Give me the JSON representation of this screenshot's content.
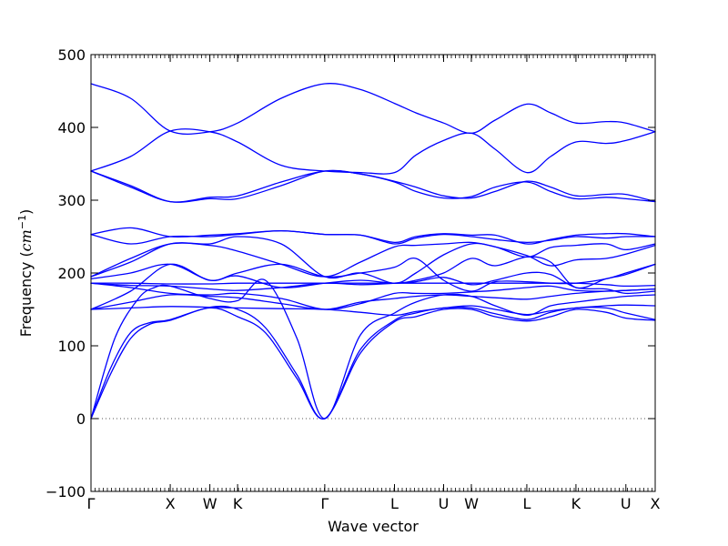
{
  "chart_data": {
    "type": "line",
    "title": "",
    "xlabel": "Wave vector",
    "ylabel_main": "Frequency (",
    "ylabel_unit": "cm",
    "ylabel_sup": "−1",
    "ylabel_close": ")",
    "ylim": [
      -100,
      500
    ],
    "xlim": [
      0,
      7.12
    ],
    "grid": false,
    "legend": "none",
    "line_color": "#0000ff",
    "zero_line": {
      "y": 0,
      "style": "dotted",
      "color": "#555555"
    },
    "y_ticks": [
      {
        "value": -100,
        "label": "−100"
      },
      {
        "value": 0,
        "label": "0"
      },
      {
        "value": 100,
        "label": "100"
      },
      {
        "value": 200,
        "label": "200"
      },
      {
        "value": 300,
        "label": "300"
      },
      {
        "value": 400,
        "label": "400"
      },
      {
        "value": 500,
        "label": "500"
      }
    ],
    "x_ticks": [
      {
        "pos": 0.0,
        "label": "Γ"
      },
      {
        "pos": 1.0,
        "label": "X"
      },
      {
        "pos": 1.5,
        "label": "W"
      },
      {
        "pos": 1.85,
        "label": "K"
      },
      {
        "pos": 2.95,
        "label": "Γ"
      },
      {
        "pos": 3.83,
        "label": "L"
      },
      {
        "pos": 4.45,
        "label": "U"
      },
      {
        "pos": 4.8,
        "label": "W"
      },
      {
        "pos": 5.5,
        "label": "L"
      },
      {
        "pos": 6.12,
        "label": "K"
      },
      {
        "pos": 6.75,
        "label": "U"
      },
      {
        "pos": 7.12,
        "label": "X"
      }
    ],
    "series": [
      {
        "x": [
          0,
          0.25,
          0.5,
          0.75,
          1.0,
          1.5,
          1.85,
          2.2,
          2.6,
          2.95,
          3.4,
          3.83,
          4.1,
          4.45,
          4.8,
          5.1,
          5.5,
          5.8,
          6.12,
          6.5,
          6.75,
          7.12
        ],
        "y": [
          0,
          62,
          110,
          130,
          135,
          152,
          140,
          118,
          55,
          0,
          90,
          133,
          140,
          150,
          150,
          140,
          134,
          140,
          150,
          146,
          138,
          135
        ]
      },
      {
        "x": [
          0,
          0.25,
          0.5,
          0.75,
          1.0,
          1.5,
          1.85,
          2.2,
          2.6,
          2.95,
          3.4,
          3.83,
          4.1,
          4.45,
          4.8,
          5.1,
          5.5,
          5.8,
          6.12,
          6.5,
          6.75,
          7.12
        ],
        "y": [
          0,
          70,
          118,
          132,
          136,
          153,
          150,
          125,
          60,
          0,
          95,
          135,
          145,
          152,
          152,
          144,
          136,
          146,
          152,
          152,
          145,
          136
        ]
      },
      {
        "x": [
          0,
          0.3,
          0.6,
          0.8,
          1.0,
          1.5,
          1.85,
          2.2,
          2.6,
          2.95,
          3.4,
          3.83,
          4.1,
          4.45,
          4.8,
          5.1,
          5.5,
          5.8,
          6.12,
          6.5,
          6.75,
          7.12
        ],
        "y": [
          0,
          110,
          165,
          180,
          182,
          165,
          162,
          190,
          110,
          0,
          115,
          145,
          160,
          170,
          168,
          155,
          142,
          155,
          160,
          165,
          168,
          170
        ]
      },
      {
        "x": [
          0,
          0.5,
          1.0,
          1.5,
          1.85,
          2.4,
          2.95,
          3.4,
          3.83,
          4.1,
          4.45,
          4.8,
          5.1,
          5.5,
          5.8,
          6.12,
          6.5,
          6.75,
          7.12
        ],
        "y": [
          150,
          152,
          154,
          153,
          152,
          151,
          150,
          146,
          142,
          147,
          152,
          155,
          150,
          143,
          148,
          152,
          155,
          156,
          155
        ]
      },
      {
        "x": [
          0,
          0.5,
          1.0,
          1.5,
          1.85,
          2.4,
          2.95,
          3.4,
          3.83,
          4.1,
          4.45,
          4.8,
          5.1,
          5.5,
          5.8,
          6.12,
          6.5,
          6.75,
          7.12
        ],
        "y": [
          150,
          160,
          170,
          168,
          166,
          158,
          150,
          160,
          165,
          168,
          170,
          168,
          166,
          164,
          168,
          172,
          175,
          176,
          178
        ]
      },
      {
        "x": [
          0,
          0.5,
          1.0,
          1.5,
          1.85,
          2.4,
          2.95,
          3.4,
          3.83,
          4.1,
          4.45,
          4.8,
          5.1,
          5.5,
          5.8,
          6.12,
          6.5,
          6.75,
          7.12
        ],
        "y": [
          186,
          180,
          172,
          170,
          172,
          165,
          150,
          158,
          172,
          172,
          172,
          174,
          176,
          180,
          182,
          176,
          175,
          176,
          178
        ]
      },
      {
        "x": [
          0,
          0.5,
          1.0,
          1.5,
          1.85,
          2.4,
          2.95,
          3.4,
          3.83,
          4.1,
          4.45,
          4.8,
          5.1,
          5.5,
          5.8,
          6.12,
          6.5,
          6.75,
          7.12
        ],
        "y": [
          186,
          186,
          185,
          185,
          186,
          186,
          186,
          186,
          186,
          186,
          186,
          186,
          186,
          186,
          186,
          186,
          184,
          182,
          183
        ]
      },
      {
        "x": [
          0,
          0.5,
          1.0,
          1.5,
          1.85,
          2.4,
          2.95,
          3.4,
          3.83,
          4.1,
          4.45,
          4.8,
          5.1,
          5.5,
          5.8,
          6.12,
          6.5,
          6.75,
          7.12
        ],
        "y": [
          186,
          183,
          182,
          178,
          176,
          180,
          186,
          184,
          186,
          188,
          194,
          184,
          190,
          200,
          198,
          180,
          178,
          172,
          175
        ]
      },
      {
        "x": [
          0,
          0.5,
          1.0,
          1.5,
          1.85,
          2.4,
          2.95,
          3.4,
          3.83,
          4.1,
          4.45,
          4.8,
          5.1,
          5.5,
          5.8,
          6.12,
          6.5,
          6.75,
          7.12
        ],
        "y": [
          150,
          175,
          212,
          190,
          200,
          212,
          195,
          200,
          208,
          220,
          190,
          175,
          188,
          188,
          186,
          186,
          192,
          200,
          212
        ]
      },
      {
        "x": [
          0,
          0.5,
          1.0,
          1.5,
          1.85,
          2.4,
          2.95,
          3.4,
          3.83,
          4.1,
          4.45,
          4.8,
          5.1,
          5.5,
          5.8,
          6.12,
          6.5,
          6.75,
          7.12
        ],
        "y": [
          192,
          200,
          212,
          190,
          196,
          180,
          186,
          190,
          186,
          190,
          200,
          220,
          210,
          222,
          215,
          180,
          192,
          198,
          212
        ]
      },
      {
        "x": [
          0,
          0.5,
          1.0,
          1.5,
          1.85,
          2.4,
          2.95,
          3.4,
          3.83,
          4.1,
          4.45,
          4.8,
          5.1,
          5.5,
          5.8,
          6.12,
          6.5,
          6.75,
          7.12
        ],
        "y": [
          195,
          220,
          240,
          238,
          230,
          212,
          195,
          215,
          236,
          238,
          240,
          242,
          236,
          224,
          210,
          218,
          220,
          226,
          238
        ]
      },
      {
        "x": [
          0,
          0.5,
          1.0,
          1.5,
          1.85,
          2.4,
          2.95,
          3.4,
          3.83,
          4.1,
          4.45,
          4.8,
          5.1,
          5.5,
          5.8,
          6.12,
          6.5,
          6.75,
          7.12
        ],
        "y": [
          195,
          215,
          240,
          240,
          250,
          240,
          195,
          200,
          186,
          200,
          225,
          240,
          236,
          222,
          235,
          238,
          240,
          232,
          240
        ]
      },
      {
        "x": [
          0,
          0.5,
          1.0,
          1.5,
          1.85,
          2.4,
          2.95,
          3.4,
          3.83,
          4.1,
          4.45,
          4.8,
          5.1,
          5.5,
          5.8,
          6.12,
          6.5,
          6.75,
          7.12
        ],
        "y": [
          253,
          240,
          250,
          250,
          253,
          258,
          253,
          252,
          240,
          248,
          253,
          250,
          246,
          242,
          245,
          250,
          248,
          250,
          250
        ]
      },
      {
        "x": [
          0,
          0.5,
          1.0,
          1.5,
          1.85,
          2.4,
          2.95,
          3.4,
          3.83,
          4.1,
          4.45,
          4.8,
          5.1,
          5.5,
          5.8,
          6.12,
          6.5,
          6.75,
          7.12
        ],
        "y": [
          253,
          262,
          250,
          252,
          254,
          258,
          253,
          252,
          242,
          250,
          254,
          252,
          252,
          240,
          246,
          252,
          254,
          254,
          250
        ]
      },
      {
        "x": [
          0,
          0.5,
          1.0,
          1.5,
          1.85,
          2.4,
          2.95,
          3.4,
          3.83,
          4.1,
          4.45,
          4.8,
          5.1,
          5.5,
          5.8,
          6.12,
          6.5,
          6.75,
          7.12
        ],
        "y": [
          340,
          320,
          298,
          302,
          302,
          320,
          340,
          336,
          326,
          318,
          306,
          303,
          312,
          326,
          318,
          306,
          308,
          308,
          298
        ]
      },
      {
        "x": [
          0,
          0.5,
          1.0,
          1.5,
          1.85,
          2.4,
          2.95,
          3.4,
          3.83,
          4.1,
          4.45,
          4.8,
          5.1,
          5.5,
          5.8,
          6.12,
          6.5,
          6.75,
          7.12
        ],
        "y": [
          340,
          318,
          298,
          304,
          306,
          325,
          340,
          336,
          325,
          312,
          303,
          305,
          318,
          325,
          312,
          302,
          304,
          302,
          298
        ]
      },
      {
        "x": [
          0,
          0.5,
          1.0,
          1.5,
          1.85,
          2.4,
          2.95,
          3.4,
          3.83,
          4.1,
          4.45,
          4.8,
          5.1,
          5.5,
          5.8,
          6.12,
          6.5,
          6.75,
          7.12
        ],
        "y": [
          340,
          360,
          395,
          394,
          380,
          348,
          340,
          338,
          338,
          362,
          382,
          392,
          370,
          338,
          360,
          380,
          378,
          382,
          394
        ]
      },
      {
        "x": [
          0,
          0.5,
          1.0,
          1.5,
          1.85,
          2.4,
          2.95,
          3.4,
          3.83,
          4.1,
          4.45,
          4.8,
          5.1,
          5.5,
          5.8,
          6.12,
          6.5,
          6.75,
          7.12
        ],
        "y": [
          460,
          440,
          395,
          394,
          406,
          440,
          460,
          452,
          433,
          420,
          406,
          392,
          410,
          432,
          420,
          406,
          408,
          406,
          394
        ]
      }
    ]
  }
}
